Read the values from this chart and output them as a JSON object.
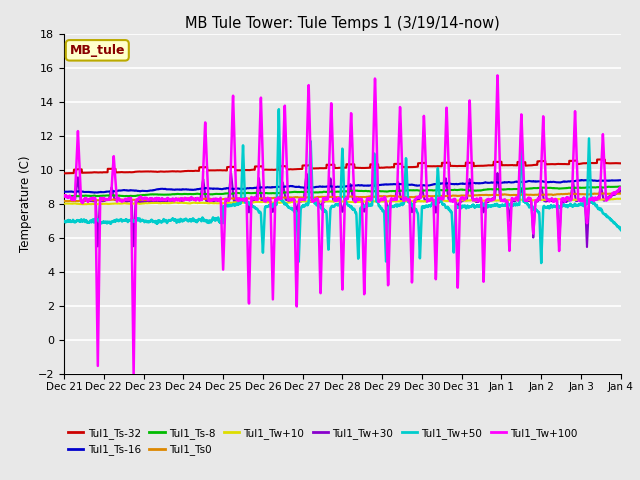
{
  "title": "MB Tule Tower: Tule Temps 1 (3/19/14-now)",
  "ylabel": "Temperature (C)",
  "ylim": [
    -2,
    18
  ],
  "yticks": [
    -2,
    0,
    2,
    4,
    6,
    8,
    10,
    12,
    14,
    16,
    18
  ],
  "xlim": [
    0,
    14
  ],
  "xtick_labels": [
    "Dec 21",
    "Dec 22",
    "Dec 23",
    "Dec 24",
    "Dec 25",
    "Dec 26",
    "Dec 27",
    "Dec 28",
    "Dec 29",
    "Dec 30",
    "Dec 31",
    "Jan 1",
    "Jan 2",
    "Jan 3",
    "Jan 4"
  ],
  "xtick_positions": [
    0,
    1,
    2,
    3,
    4,
    5,
    6,
    7,
    8,
    9,
    10,
    11,
    12,
    13,
    14
  ],
  "series_order": [
    "Tul1_Ts-32",
    "Tul1_Ts-16",
    "Tul1_Ts-8",
    "Tul1_Ts0",
    "Tul1_Tw+10",
    "Tul1_Tw+30",
    "Tul1_Tw+50",
    "Tul1_Tw+100"
  ],
  "series": {
    "Tul1_Ts-32": {
      "color": "#cc0000",
      "lw": 1.5
    },
    "Tul1_Ts-16": {
      "color": "#0000cc",
      "lw": 1.5
    },
    "Tul1_Ts-8": {
      "color": "#00bb00",
      "lw": 1.5
    },
    "Tul1_Ts0": {
      "color": "#dd8800",
      "lw": 1.5
    },
    "Tul1_Tw+10": {
      "color": "#dddd00",
      "lw": 1.5
    },
    "Tul1_Tw+30": {
      "color": "#8800cc",
      "lw": 1.5
    },
    "Tul1_Tw+50": {
      "color": "#00cccc",
      "lw": 1.8
    },
    "Tul1_Tw+100": {
      "color": "#ff00ff",
      "lw": 1.8
    }
  },
  "legend_label": "MB_tule",
  "legend_color": "#880000",
  "legend_bg": "#ffffcc",
  "legend_border": "#bbaa00",
  "plot_bg": "#e8e8e8",
  "fig_bg": "#e8e8e8",
  "grid_color": "#ffffff",
  "legend_items": [
    [
      "Tul1_Ts-32",
      "#cc0000"
    ],
    [
      "Tul1_Ts-16",
      "#0000cc"
    ],
    [
      "Tul1_Ts-8",
      "#00bb00"
    ],
    [
      "Tul1_Ts0",
      "#dd8800"
    ],
    [
      "Tul1_Tw+10",
      "#dddd00"
    ],
    [
      "Tul1_Tw+30",
      "#8800cc"
    ],
    [
      "Tul1_Tw+50",
      "#00cccc"
    ],
    [
      "Tul1_Tw+100",
      "#ff00ff"
    ]
  ]
}
